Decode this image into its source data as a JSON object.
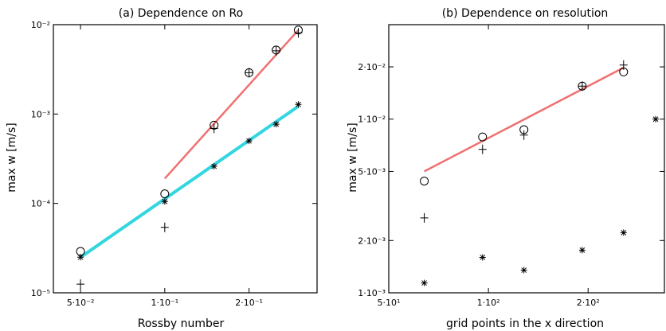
{
  "figure": {
    "panels": [
      {
        "title": "(a) Dependence on Ro"
      },
      {
        "title": "(b) Dependence on resolution"
      }
    ]
  },
  "chart_data": [
    {
      "type": "scatter",
      "title": "(a) Dependence on Ro",
      "xlabel": "Rossby number",
      "ylabel": "max w [m/s]",
      "x_scale": "log",
      "y_scale": "log",
      "xlim": [
        0.04,
        0.35
      ],
      "ylim": [
        1e-05,
        0.01
      ],
      "grid": false,
      "x_ticks": [
        {
          "value": 0.05,
          "label": "5·10⁻²"
        },
        {
          "value": 0.1,
          "label": "1·10⁻¹"
        },
        {
          "value": 0.2,
          "label": "2·10⁻¹"
        }
      ],
      "y_ticks": [
        {
          "value": 1e-05,
          "label": "10⁻⁵"
        },
        {
          "value": 0.0001,
          "label": "10⁻⁴"
        },
        {
          "value": 0.001,
          "label": "10⁻³"
        },
        {
          "value": 0.01,
          "label": "10⁻²"
        }
      ],
      "series": [
        {
          "marker": "circle",
          "x": [
            0.05,
            0.1,
            0.15,
            0.2,
            0.25,
            0.3
          ],
          "y": [
            2.9e-05,
            0.000128,
            0.00075,
            0.0029,
            0.0052,
            0.0087
          ]
        },
        {
          "marker": "plus",
          "x": [
            0.05,
            0.1,
            0.15,
            0.2,
            0.25,
            0.3
          ],
          "y": [
            1.25e-05,
            5.4e-05,
            0.00069,
            0.0029,
            0.0051,
            0.0081
          ]
        },
        {
          "marker": "asterisk",
          "x": [
            0.05,
            0.1,
            0.15,
            0.2,
            0.25,
            0.3
          ],
          "y": [
            2.5e-05,
            0.000105,
            0.00026,
            0.0005,
            0.00077,
            0.00128
          ]
        }
      ],
      "fit_lines": [
        {
          "color": "#f07070",
          "x": [
            0.1,
            0.3
          ],
          "y": [
            0.00019,
            0.0087
          ]
        },
        {
          "color": "#33d6e0",
          "x": [
            0.05,
            0.3
          ],
          "y": [
            2.5e-05,
            0.00122
          ]
        }
      ]
    },
    {
      "type": "scatter",
      "title": "(b) Dependence on resolution",
      "xlabel": "grid points in the x direction",
      "ylabel": "max w [m/s]",
      "x_scale": "log",
      "y_scale": "log",
      "xlim": [
        50,
        340
      ],
      "ylim": [
        0.001,
        0.035
      ],
      "grid": false,
      "x_ticks": [
        {
          "value": 50,
          "label": "5·10¹"
        },
        {
          "value": 100,
          "label": "1·10²"
        },
        {
          "value": 200,
          "label": "2·10²"
        }
      ],
      "y_ticks": [
        {
          "value": 0.001,
          "label": "1·10⁻³"
        },
        {
          "value": 0.002,
          "label": "2·10⁻³"
        },
        {
          "value": 0.005,
          "label": "5·10⁻³"
        },
        {
          "value": 0.01,
          "label": "1·10⁻²"
        },
        {
          "value": 0.02,
          "label": "2·10⁻²"
        }
      ],
      "series": [
        {
          "marker": "circle",
          "x": [
            64,
            96,
            128,
            192,
            256
          ],
          "y": [
            0.0044,
            0.0079,
            0.0087,
            0.0155,
            0.0187
          ]
        },
        {
          "marker": "plus",
          "x": [
            64,
            96,
            128,
            192,
            256
          ],
          "y": [
            0.0027,
            0.0067,
            0.0081,
            0.0155,
            0.0205
          ]
        },
        {
          "marker": "asterisk",
          "x": [
            64,
            96,
            128,
            192,
            256,
            320
          ],
          "y": [
            0.00114,
            0.0016,
            0.00135,
            0.00176,
            0.00222,
            0.01
          ]
        }
      ],
      "fit_lines": [
        {
          "color": "#f07070",
          "x": [
            64,
            256
          ],
          "y": [
            0.005,
            0.0198
          ]
        }
      ]
    }
  ]
}
